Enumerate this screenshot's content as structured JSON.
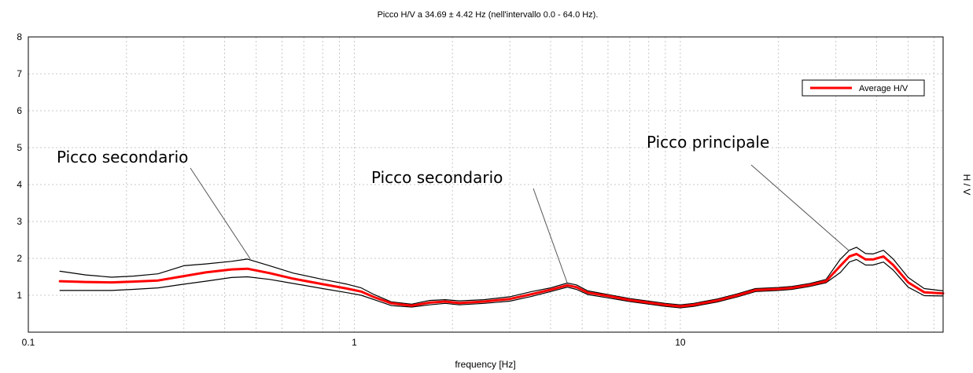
{
  "chart_data": {
    "type": "line",
    "title": "Picco H/V a 34.69 ± 4.42 Hz (nell'intervallo 0.0 - 64.0 Hz).",
    "xlabel": "frequency [Hz]",
    "ylabel": "H / V",
    "x_scale": "log",
    "xlim": [
      0.1,
      64
    ],
    "ylim": [
      0,
      8
    ],
    "x_ticks": [
      {
        "value": 0.1,
        "label": "0.1"
      },
      {
        "value": 1,
        "label": "1"
      },
      {
        "value": 10,
        "label": "10"
      }
    ],
    "y_ticks": [
      {
        "value": 1,
        "label": "1"
      },
      {
        "value": 2,
        "label": "2"
      },
      {
        "value": 3,
        "label": "3"
      },
      {
        "value": 4,
        "label": "4"
      },
      {
        "value": 5,
        "label": "5"
      },
      {
        "value": 6,
        "label": "6"
      },
      {
        "value": 7,
        "label": "7"
      },
      {
        "value": 8,
        "label": "8"
      }
    ],
    "grid": true,
    "legend": {
      "position": "top-right",
      "entries": [
        "Average H/V"
      ]
    },
    "series": [
      {
        "name": "Average H/V",
        "color": "#ff0000",
        "role": "average",
        "points": [
          [
            0.125,
            1.38
          ],
          [
            0.15,
            1.36
          ],
          [
            0.18,
            1.35
          ],
          [
            0.21,
            1.37
          ],
          [
            0.25,
            1.4
          ],
          [
            0.3,
            1.52
          ],
          [
            0.35,
            1.62
          ],
          [
            0.42,
            1.7
          ],
          [
            0.47,
            1.72
          ],
          [
            0.55,
            1.6
          ],
          [
            0.65,
            1.45
          ],
          [
            0.8,
            1.3
          ],
          [
            0.95,
            1.18
          ],
          [
            1.05,
            1.1
          ],
          [
            1.15,
            0.95
          ],
          [
            1.3,
            0.78
          ],
          [
            1.5,
            0.72
          ],
          [
            1.7,
            0.8
          ],
          [
            1.9,
            0.83
          ],
          [
            2.1,
            0.79
          ],
          [
            2.5,
            0.83
          ],
          [
            3.0,
            0.9
          ],
          [
            3.5,
            1.03
          ],
          [
            4.0,
            1.15
          ],
          [
            4.5,
            1.27
          ],
          [
            4.8,
            1.22
          ],
          [
            5.2,
            1.07
          ],
          [
            6,
            0.98
          ],
          [
            7,
            0.87
          ],
          [
            8,
            0.8
          ],
          [
            9,
            0.74
          ],
          [
            10,
            0.7
          ],
          [
            11,
            0.74
          ],
          [
            13,
            0.86
          ],
          [
            15,
            1.0
          ],
          [
            17,
            1.14
          ],
          [
            20,
            1.17
          ],
          [
            22,
            1.2
          ],
          [
            25,
            1.28
          ],
          [
            28,
            1.38
          ],
          [
            31,
            1.8
          ],
          [
            33,
            2.05
          ],
          [
            34.7,
            2.12
          ],
          [
            37,
            1.97
          ],
          [
            39,
            1.97
          ],
          [
            42,
            2.05
          ],
          [
            45,
            1.82
          ],
          [
            50,
            1.35
          ],
          [
            56,
            1.08
          ],
          [
            64,
            1.05
          ]
        ]
      },
      {
        "name": "",
        "color": "#000000",
        "role": "upper",
        "points": [
          [
            0.125,
            1.65
          ],
          [
            0.15,
            1.55
          ],
          [
            0.18,
            1.49
          ],
          [
            0.21,
            1.52
          ],
          [
            0.25,
            1.58
          ],
          [
            0.3,
            1.8
          ],
          [
            0.35,
            1.85
          ],
          [
            0.42,
            1.92
          ],
          [
            0.47,
            1.98
          ],
          [
            0.55,
            1.8
          ],
          [
            0.65,
            1.6
          ],
          [
            0.8,
            1.43
          ],
          [
            0.95,
            1.3
          ],
          [
            1.05,
            1.2
          ],
          [
            1.15,
            1.02
          ],
          [
            1.3,
            0.82
          ],
          [
            1.5,
            0.76
          ],
          [
            1.7,
            0.86
          ],
          [
            1.9,
            0.88
          ],
          [
            2.1,
            0.85
          ],
          [
            2.5,
            0.88
          ],
          [
            3.0,
            0.96
          ],
          [
            3.5,
            1.1
          ],
          [
            4.0,
            1.2
          ],
          [
            4.5,
            1.33
          ],
          [
            4.8,
            1.28
          ],
          [
            5.2,
            1.12
          ],
          [
            6,
            1.02
          ],
          [
            7,
            0.91
          ],
          [
            8,
            0.84
          ],
          [
            9,
            0.78
          ],
          [
            10,
            0.74
          ],
          [
            11,
            0.78
          ],
          [
            13,
            0.9
          ],
          [
            15,
            1.04
          ],
          [
            17,
            1.18
          ],
          [
            20,
            1.21
          ],
          [
            22,
            1.24
          ],
          [
            25,
            1.32
          ],
          [
            28,
            1.43
          ],
          [
            31,
            1.98
          ],
          [
            33,
            2.22
          ],
          [
            34.7,
            2.3
          ],
          [
            37,
            2.13
          ],
          [
            39,
            2.12
          ],
          [
            42,
            2.22
          ],
          [
            45,
            1.98
          ],
          [
            50,
            1.48
          ],
          [
            56,
            1.18
          ],
          [
            64,
            1.12
          ]
        ]
      },
      {
        "name": "",
        "color": "#000000",
        "role": "lower",
        "points": [
          [
            0.125,
            1.13
          ],
          [
            0.15,
            1.13
          ],
          [
            0.18,
            1.13
          ],
          [
            0.21,
            1.16
          ],
          [
            0.25,
            1.2
          ],
          [
            0.3,
            1.3
          ],
          [
            0.35,
            1.38
          ],
          [
            0.42,
            1.48
          ],
          [
            0.47,
            1.5
          ],
          [
            0.55,
            1.43
          ],
          [
            0.65,
            1.32
          ],
          [
            0.8,
            1.18
          ],
          [
            0.95,
            1.07
          ],
          [
            1.05,
            1.0
          ],
          [
            1.15,
            0.88
          ],
          [
            1.3,
            0.72
          ],
          [
            1.5,
            0.68
          ],
          [
            1.7,
            0.74
          ],
          [
            1.9,
            0.78
          ],
          [
            2.1,
            0.74
          ],
          [
            2.5,
            0.78
          ],
          [
            3.0,
            0.84
          ],
          [
            3.5,
            0.97
          ],
          [
            4.0,
            1.1
          ],
          [
            4.5,
            1.22
          ],
          [
            4.8,
            1.16
          ],
          [
            5.2,
            1.02
          ],
          [
            6,
            0.93
          ],
          [
            7,
            0.83
          ],
          [
            8,
            0.76
          ],
          [
            9,
            0.7
          ],
          [
            10,
            0.66
          ],
          [
            11,
            0.7
          ],
          [
            13,
            0.82
          ],
          [
            15,
            0.96
          ],
          [
            17,
            1.1
          ],
          [
            20,
            1.13
          ],
          [
            22,
            1.16
          ],
          [
            25,
            1.24
          ],
          [
            28,
            1.34
          ],
          [
            31,
            1.62
          ],
          [
            33,
            1.9
          ],
          [
            34.7,
            1.97
          ],
          [
            37,
            1.82
          ],
          [
            39,
            1.82
          ],
          [
            42,
            1.9
          ],
          [
            45,
            1.68
          ],
          [
            50,
            1.22
          ],
          [
            56,
            0.99
          ],
          [
            64,
            0.98
          ]
        ]
      }
    ],
    "annotations": [
      {
        "text": "Picco secondario",
        "target": [
          0.48,
          1.98
        ]
      },
      {
        "text": "Picco secondario",
        "target": [
          4.5,
          1.33
        ]
      },
      {
        "text": "Picco principale",
        "target": [
          33,
          2.2
        ]
      }
    ]
  }
}
